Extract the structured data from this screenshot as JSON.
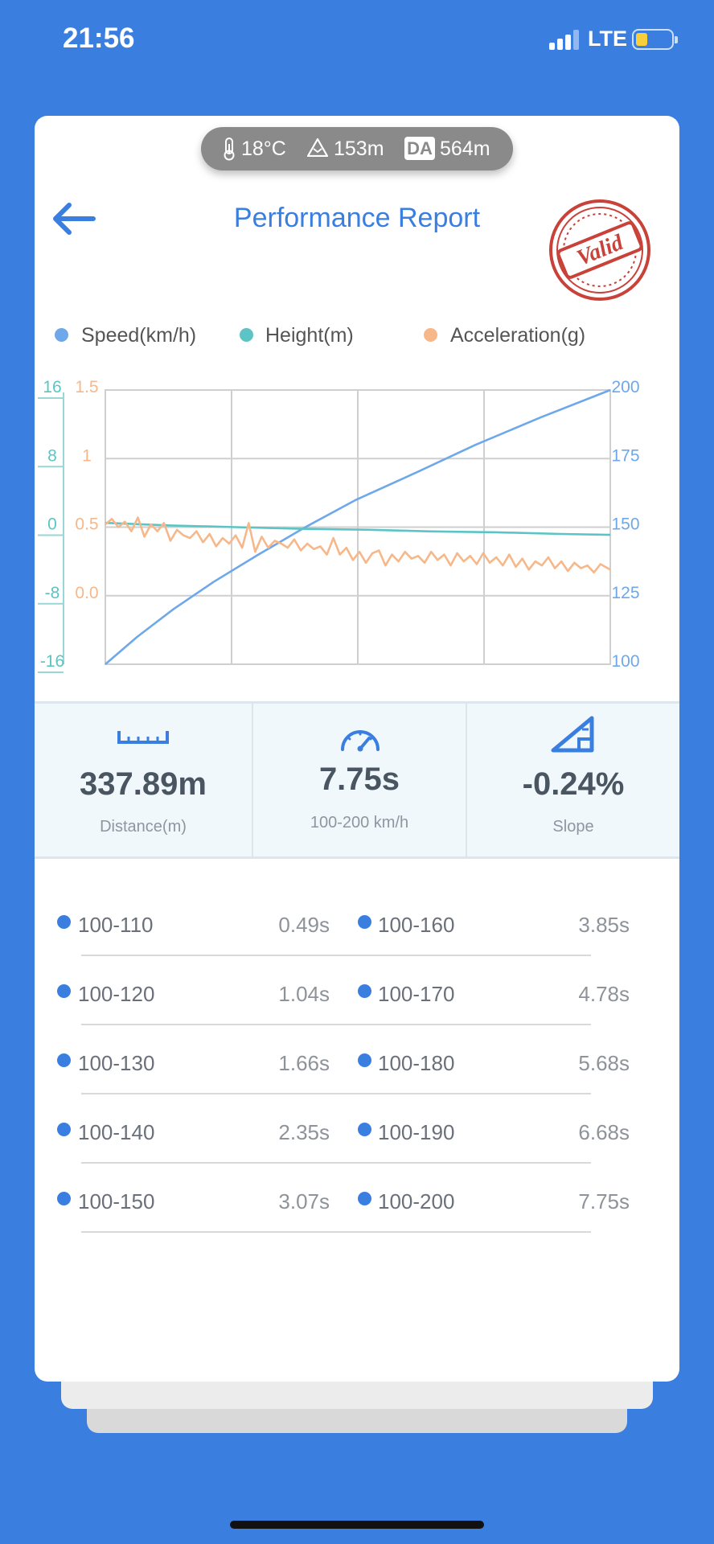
{
  "status_bar": {
    "time": "21:56",
    "network": "LTE"
  },
  "environment": {
    "temperature": "18°C",
    "altitude": "153m",
    "da_label": "DA",
    "density_altitude": "564m"
  },
  "header": {
    "title": "Performance Report",
    "stamp_text": "Valid"
  },
  "legend": [
    {
      "label": "Speed(km/h)",
      "color": "#6ea8ea"
    },
    {
      "label": "Height(m)",
      "color": "#5cc4c4"
    },
    {
      "label": "Acceleration(g)",
      "color": "#f6b88a"
    }
  ],
  "chart_data": {
    "type": "line",
    "axes": {
      "height": {
        "ticks": [
          "16",
          "8",
          "0",
          "-8",
          "-16"
        ],
        "ylim": [
          -16,
          16
        ],
        "color": "#5cc4c4"
      },
      "acceleration": {
        "ticks": [
          "1.5",
          "1",
          "0.5",
          "0.0"
        ],
        "ylim": [
          -0.5,
          1.5
        ],
        "color": "#f6b88a"
      },
      "speed": {
        "ticks": [
          "200",
          "175",
          "150",
          "125",
          "100"
        ],
        "ylim": [
          100,
          200
        ],
        "color": "#6ea8ea"
      }
    },
    "xlim": [
      0,
      7.75
    ],
    "grid": true,
    "series": [
      {
        "name": "Speed(km/h)",
        "color": "#6ea8ea",
        "axis": "speed",
        "x": [
          0,
          0.49,
          1.04,
          1.66,
          2.35,
          3.07,
          3.85,
          4.78,
          5.68,
          6.68,
          7.75
        ],
        "y": [
          100,
          110,
          120,
          130,
          140,
          150,
          160,
          170,
          180,
          190,
          200
        ]
      },
      {
        "name": "Height(m)",
        "color": "#5cc4c4",
        "axis": "height",
        "x": [
          0,
          1.0,
          2.0,
          3.0,
          4.0,
          5.0,
          6.0,
          7.0,
          7.75
        ],
        "y": [
          0.5,
          0.2,
          0.0,
          -0.2,
          -0.3,
          -0.5,
          -0.6,
          -0.8,
          -0.9
        ]
      },
      {
        "name": "Acceleration(g)",
        "color": "#f6b88a",
        "axis": "acceleration",
        "x": [
          0,
          0.1,
          0.2,
          0.3,
          0.4,
          0.5,
          0.6,
          0.7,
          0.8,
          0.9,
          1.0,
          1.1,
          1.2,
          1.3,
          1.4,
          1.5,
          1.6,
          1.7,
          1.8,
          1.9,
          2.0,
          2.1,
          2.2,
          2.3,
          2.4,
          2.5,
          2.6,
          2.7,
          2.8,
          2.9,
          3.0,
          3.1,
          3.2,
          3.3,
          3.4,
          3.5,
          3.6,
          3.7,
          3.8,
          3.9,
          4.0,
          4.1,
          4.2,
          4.3,
          4.4,
          4.5,
          4.6,
          4.7,
          4.8,
          4.9,
          5.0,
          5.1,
          5.2,
          5.3,
          5.4,
          5.5,
          5.6,
          5.7,
          5.8,
          5.9,
          6.0,
          6.1,
          6.2,
          6.3,
          6.4,
          6.5,
          6.6,
          6.7,
          6.8,
          6.9,
          7.0,
          7.1,
          7.2,
          7.3,
          7.4,
          7.5,
          7.6,
          7.75
        ],
        "y": [
          0.52,
          0.56,
          0.5,
          0.54,
          0.47,
          0.57,
          0.43,
          0.52,
          0.47,
          0.53,
          0.4,
          0.48,
          0.44,
          0.42,
          0.47,
          0.39,
          0.45,
          0.36,
          0.42,
          0.38,
          0.44,
          0.35,
          0.53,
          0.32,
          0.43,
          0.35,
          0.4,
          0.38,
          0.35,
          0.41,
          0.33,
          0.38,
          0.34,
          0.36,
          0.3,
          0.42,
          0.3,
          0.35,
          0.26,
          0.32,
          0.24,
          0.31,
          0.33,
          0.22,
          0.3,
          0.25,
          0.32,
          0.27,
          0.29,
          0.24,
          0.32,
          0.26,
          0.3,
          0.22,
          0.31,
          0.25,
          0.29,
          0.23,
          0.31,
          0.24,
          0.28,
          0.22,
          0.3,
          0.21,
          0.27,
          0.19,
          0.25,
          0.22,
          0.28,
          0.2,
          0.25,
          0.18,
          0.24,
          0.2,
          0.22,
          0.17,
          0.23,
          0.19
        ]
      }
    ]
  },
  "stats": {
    "distance": {
      "value": "337.89m",
      "label": "Distance(m)"
    },
    "time": {
      "value": "7.75s",
      "label": "100-200 km/h"
    },
    "slope": {
      "value": "-0.24%",
      "label": "Slope"
    }
  },
  "splits": [
    {
      "left_range": "100-110",
      "left_time": "0.49s",
      "right_range": "100-160",
      "right_time": "3.85s"
    },
    {
      "left_range": "100-120",
      "left_time": "1.04s",
      "right_range": "100-170",
      "right_time": "4.78s"
    },
    {
      "left_range": "100-130",
      "left_time": "1.66s",
      "right_range": "100-180",
      "right_time": "5.68s"
    },
    {
      "left_range": "100-140",
      "left_time": "2.35s",
      "right_range": "100-190",
      "right_time": "6.68s"
    },
    {
      "left_range": "100-150",
      "left_time": "3.07s",
      "right_range": "100-200",
      "right_time": "7.75s"
    }
  ]
}
